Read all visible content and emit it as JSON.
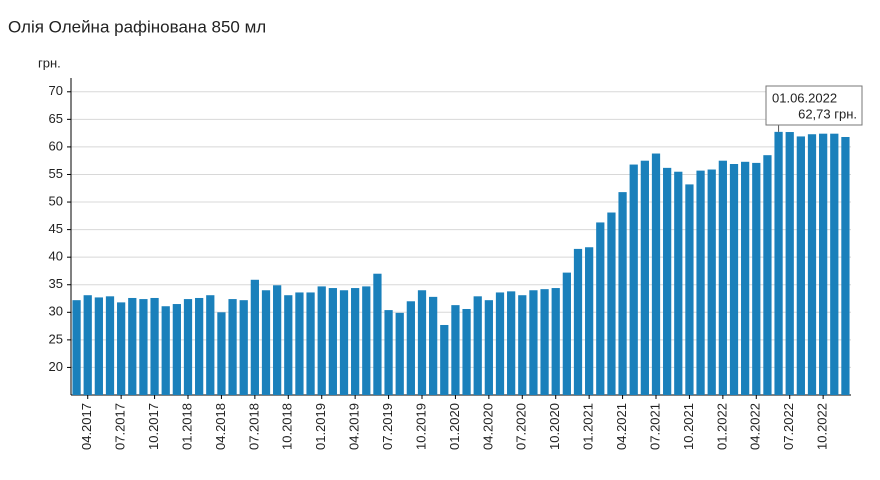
{
  "chart_data": {
    "type": "bar",
    "title": "Олія Олейна рафінована 850 мл",
    "y_unit": "грн.",
    "color": "#1a80bb",
    "grid": true,
    "ylim": [
      15,
      72.5
    ],
    "yticks": [
      20,
      25,
      30,
      35,
      40,
      45,
      50,
      55,
      60,
      65,
      70
    ],
    "categories": [
      null,
      "04.2017",
      null,
      null,
      "07.2017",
      null,
      null,
      "10.2017",
      null,
      null,
      "01.2018",
      null,
      null,
      "04.2018",
      null,
      null,
      "07.2018",
      null,
      null,
      "10.2018",
      null,
      null,
      "01.2019",
      null,
      null,
      "04.2019",
      null,
      null,
      "07.2019",
      null,
      null,
      "10.2019",
      null,
      null,
      "01.2020",
      null,
      null,
      "04.2020",
      null,
      null,
      "07.2020",
      null,
      null,
      "10.2020",
      null,
      null,
      "01.2021",
      null,
      null,
      "04.2021",
      null,
      null,
      "07.2021",
      null,
      null,
      "10.2021",
      null,
      null,
      "01.2022",
      null,
      null,
      "04.2022",
      null,
      null,
      "07.2022",
      null,
      null,
      "10.2022",
      null,
      null
    ],
    "values": [
      32.2,
      33.1,
      32.7,
      32.9,
      31.8,
      32.6,
      32.4,
      32.6,
      31.1,
      31.5,
      32.4,
      32.6,
      33.1,
      30.0,
      32.4,
      32.2,
      35.9,
      34.0,
      34.9,
      33.1,
      33.6,
      33.6,
      34.7,
      34.4,
      34.0,
      34.4,
      34.7,
      37.0,
      30.4,
      29.9,
      32.0,
      34.0,
      32.8,
      27.7,
      31.3,
      30.6,
      32.9,
      32.2,
      33.6,
      33.8,
      33.1,
      34.0,
      34.2,
      34.4,
      37.2,
      41.5,
      41.8,
      46.3,
      48.1,
      51.8,
      56.8,
      57.5,
      58.8,
      56.2,
      55.5,
      53.2,
      55.7,
      55.9,
      57.5,
      56.9,
      57.3,
      57.1,
      58.5,
      62.73,
      62.7,
      61.9,
      62.3,
      62.4,
      62.4,
      61.8
    ],
    "tooltip": {
      "date": "01.06.2022",
      "value_label": "62,73 грн."
    }
  }
}
